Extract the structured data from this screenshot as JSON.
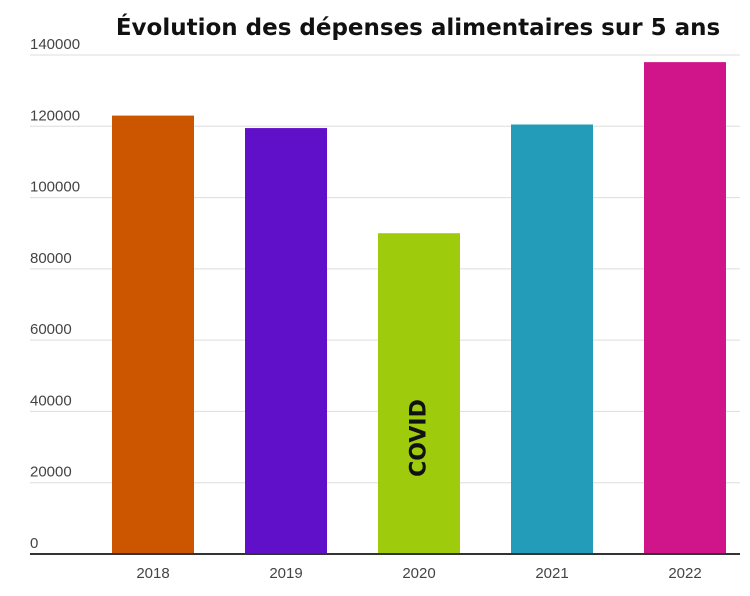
{
  "chart_data": {
    "type": "bar",
    "title": "Évolution des dépenses alimentaires sur 5 ans",
    "xlabel": "",
    "ylabel": "",
    "categories": [
      "2018",
      "2019",
      "2020",
      "2021",
      "2022"
    ],
    "values": [
      123000,
      119500,
      90000,
      120500,
      138000
    ],
    "colors": [
      "#cc5500",
      "#6010c8",
      "#9ecb0c",
      "#229cb8",
      "#d0148a"
    ],
    "ylim": [
      0,
      140000
    ],
    "yticks": [
      0,
      20000,
      40000,
      60000,
      80000,
      100000,
      120000,
      140000
    ],
    "grid": true,
    "annotations": [
      {
        "category": "2020",
        "text": "COVID",
        "orientation": "vertical"
      }
    ]
  }
}
